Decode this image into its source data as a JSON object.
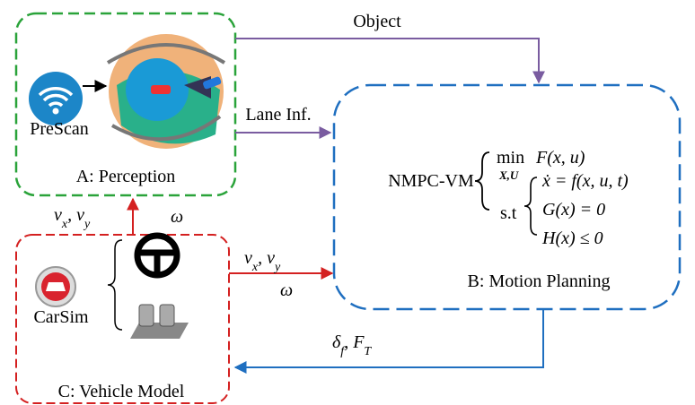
{
  "nodes": [
    {
      "label": "A: Perception",
      "tool": "PreScan"
    },
    {
      "label": "B: Motion Planning",
      "controller": "NMPC-VM",
      "objective": {
        "op": "min",
        "under": "X,U",
        "expr": "F(x, u)"
      },
      "constraints": {
        "st": "s.t",
        "rows": [
          "ẋ  = f(x, u, t)",
          "G(x) = 0",
          "H(x) ≤ 0"
        ]
      }
    },
    {
      "label": "C: Vehicle Model",
      "tool": "CarSim"
    }
  ],
  "edges": [
    {
      "label": [
        {
          "text": "Object"
        }
      ]
    },
    {
      "label": [
        {
          "text": "Lane Inf."
        }
      ]
    },
    {
      "label": [
        {
          "text": "v",
          "sub": "x"
        },
        {
          "text": ", "
        },
        {
          "text": "v",
          "sub": "y"
        }
      ],
      "extra": "ω"
    },
    {
      "label": [
        {
          "text": "v",
          "sub": "x"
        },
        {
          "text": ", "
        },
        {
          "text": "v",
          "sub": "y"
        }
      ],
      "extra": "ω"
    },
    {
      "label": [
        {
          "text": "δ",
          "sub": "f"
        },
        {
          "text": ", "
        },
        {
          "text": "F",
          "sub": "T"
        }
      ]
    }
  ]
}
